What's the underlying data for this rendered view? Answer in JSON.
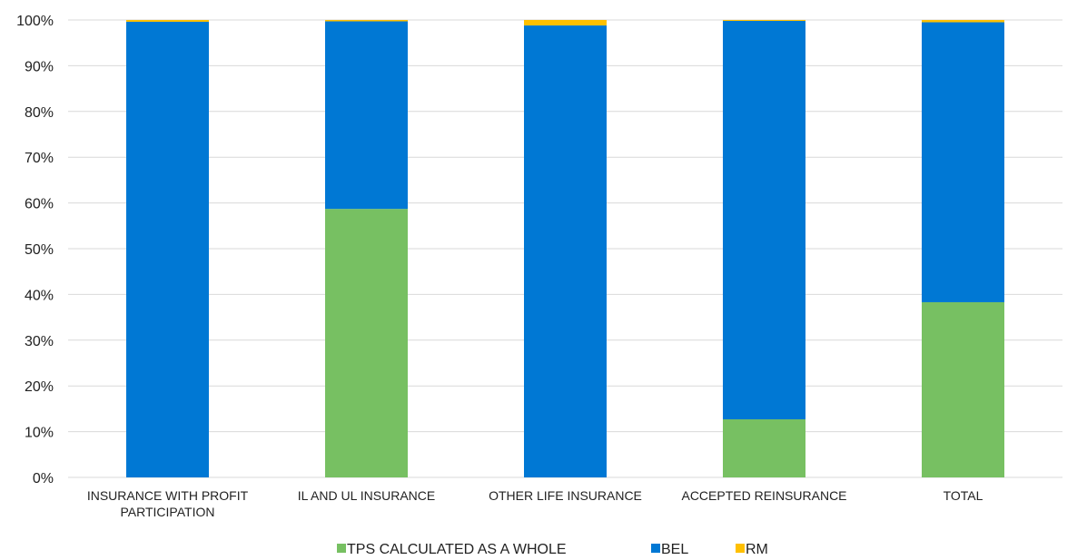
{
  "chart_data": {
    "type": "bar",
    "stacked": true,
    "percent_stacked": true,
    "categories": [
      "INSURANCE WITH PROFIT PARTICIPATION",
      "IL AND UL INSURANCE",
      "OTHER LIFE INSURANCE",
      "ACCEPTED REINSURANCE",
      "TOTAL"
    ],
    "category_lines": [
      [
        "INSURANCE WITH PROFIT",
        "PARTICIPATION"
      ],
      [
        "IL AND UL INSURANCE"
      ],
      [
        "OTHER LIFE INSURANCE"
      ],
      [
        "ACCEPTED REINSURANCE"
      ],
      [
        "TOTAL"
      ]
    ],
    "series": [
      {
        "name": "TPS CALCULATED AS A WHOLE",
        "color": "#77c062",
        "values": [
          0,
          58.7,
          0,
          12.7,
          38.3
        ]
      },
      {
        "name": "BEL",
        "color": "#0078d4",
        "values": [
          99.6,
          41.0,
          98.8,
          87.1,
          61.2
        ]
      },
      {
        "name": "RM",
        "color": "#ffc000",
        "values": [
          0.4,
          0.3,
          1.2,
          0.2,
          0.5
        ]
      }
    ],
    "ylim": [
      0,
      100
    ],
    "yticks": [
      "0%",
      "10%",
      "20%",
      "30%",
      "40%",
      "50%",
      "60%",
      "70%",
      "80%",
      "90%",
      "100%"
    ],
    "title": "",
    "xlabel": "",
    "ylabel": "",
    "grid": true,
    "legend_position": "bottom"
  }
}
